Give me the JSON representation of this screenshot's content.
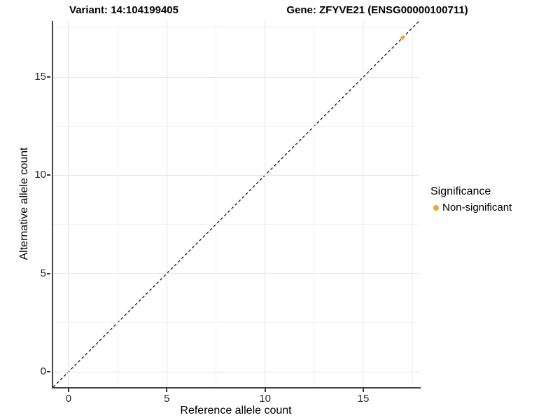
{
  "titles": {
    "variant": "Variant: 14:104199405",
    "gene": "Gene: ZFYVE21 (ENSG00000100711)"
  },
  "axes": {
    "x": {
      "label": "Reference allele count"
    },
    "y": {
      "label": "Alternative allele count"
    }
  },
  "legend": {
    "title": "Significance",
    "items": [
      {
        "label": "Non-significant",
        "color": "#f9a12b"
      }
    ]
  },
  "chart_data": {
    "type": "scatter",
    "title": "Variant: 14:104199405    Gene: ZFYVE21 (ENSG00000100711)",
    "xlabel": "Reference allele count",
    "ylabel": "Alternative allele count",
    "xlim": [
      -0.78,
      17.85
    ],
    "ylim": [
      -0.78,
      17.85
    ],
    "x_ticks": [
      0,
      5,
      10,
      15
    ],
    "y_ticks": [
      0,
      5,
      10,
      15
    ],
    "x_minor_ticks": [
      2.5,
      7.5,
      12.5,
      17.5
    ],
    "y_minor_ticks": [
      2.5,
      7.5,
      12.5,
      17.5
    ],
    "grid": true,
    "legend_position": "right",
    "reference_line": {
      "type": "identity",
      "style": "dashed",
      "color": "#111111"
    },
    "series": [
      {
        "name": "Non-significant",
        "color": "#f9a12b",
        "points": [
          {
            "x": 17,
            "y": 17
          }
        ]
      }
    ]
  }
}
